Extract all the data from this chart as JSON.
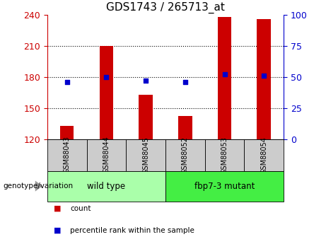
{
  "title": "GDS1743 / 265713_at",
  "categories": [
    "GSM88043",
    "GSM88044",
    "GSM88045",
    "GSM88052",
    "GSM88053",
    "GSM88054"
  ],
  "counts": [
    133,
    210,
    163,
    142,
    238,
    236
  ],
  "percentile_ranks": [
    46,
    50,
    47,
    46,
    52,
    51
  ],
  "ylim_left": [
    120,
    240
  ],
  "ylim_right": [
    0,
    100
  ],
  "yticks_left": [
    120,
    150,
    180,
    210,
    240
  ],
  "yticks_right": [
    0,
    25,
    50,
    75,
    100
  ],
  "bar_color": "#cc0000",
  "dot_color": "#0000cc",
  "bar_width": 0.35,
  "groups": [
    {
      "label": "wild type",
      "indices": [
        0,
        1,
        2
      ],
      "color": "#aaffaa"
    },
    {
      "label": "fbp7-3 mutant",
      "indices": [
        3,
        4,
        5
      ],
      "color": "#44ee44"
    }
  ],
  "group_label": "genotype/variation",
  "legend_count_label": "count",
  "legend_pct_label": "percentile rank within the sample",
  "title_fontsize": 11,
  "tick_label_color_left": "#cc0000",
  "tick_label_color_right": "#0000cc",
  "cell_color": "#cccccc",
  "grid_linestyle": "dotted",
  "grid_linewidth": 0.8
}
